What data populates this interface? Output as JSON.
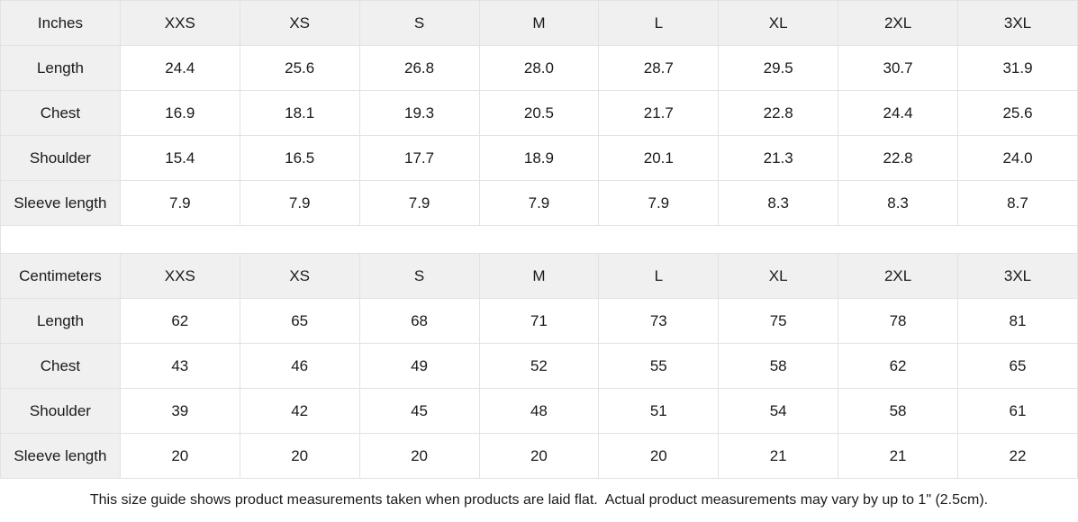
{
  "tables": [
    {
      "unit_label": "Inches",
      "sizes": [
        "XXS",
        "XS",
        "S",
        "M",
        "L",
        "XL",
        "2XL",
        "3XL"
      ],
      "rows": [
        {
          "label": "Length",
          "values": [
            "24.4",
            "25.6",
            "26.8",
            "28.0",
            "28.7",
            "29.5",
            "30.7",
            "31.9"
          ]
        },
        {
          "label": "Chest",
          "values": [
            "16.9",
            "18.1",
            "19.3",
            "20.5",
            "21.7",
            "22.8",
            "24.4",
            "25.6"
          ]
        },
        {
          "label": "Shoulder",
          "values": [
            "15.4",
            "16.5",
            "17.7",
            "18.9",
            "20.1",
            "21.3",
            "22.8",
            "24.0"
          ]
        },
        {
          "label": "Sleeve length",
          "values": [
            "7.9",
            "7.9",
            "7.9",
            "7.9",
            "7.9",
            "8.3",
            "8.3",
            "8.7"
          ]
        }
      ]
    },
    {
      "unit_label": "Centimeters",
      "sizes": [
        "XXS",
        "XS",
        "S",
        "M",
        "L",
        "XL",
        "2XL",
        "3XL"
      ],
      "rows": [
        {
          "label": "Length",
          "values": [
            "62",
            "65",
            "68",
            "71",
            "73",
            "75",
            "78",
            "81"
          ]
        },
        {
          "label": "Chest",
          "values": [
            "43",
            "46",
            "49",
            "52",
            "55",
            "58",
            "62",
            "65"
          ]
        },
        {
          "label": "Shoulder",
          "values": [
            "39",
            "42",
            "45",
            "48",
            "51",
            "54",
            "58",
            "61"
          ]
        },
        {
          "label": "Sleeve length",
          "values": [
            "20",
            "20",
            "20",
            "20",
            "20",
            "21",
            "21",
            "22"
          ]
        }
      ]
    }
  ],
  "footer": {
    "note": "This size guide shows product measurements taken when products are laid flat.  Actual product measurements may vary by up to 1\" (2.5cm)."
  },
  "colors": {
    "header_background": "#f0f0f0",
    "cell_background": "#ffffff",
    "border": "#e2e2e2",
    "text": "#1a1a1a"
  }
}
